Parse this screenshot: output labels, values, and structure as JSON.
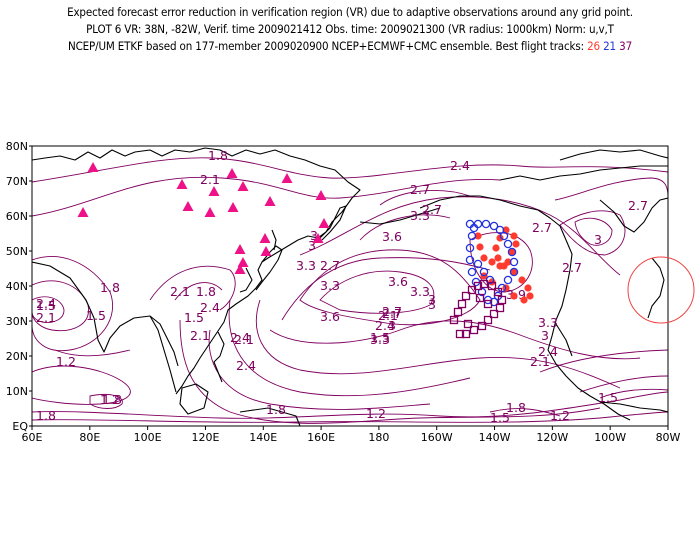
{
  "header": {
    "line1": "Expected forecast error reduction in verification region (VR) due to adaptive observations around any grid point.",
    "line2": "PLOT 6 VR: 38N, -82W, Verif. time 2009021412 Obs. time: 2009021300 (VR radius: 1000km) Norm: u,v,T",
    "line3_prefix": "NCEP/UM ETKF based on 177-member 2009020900 NCEP+ECMWF+CMC ensemble. Best flight tracks:",
    "track_a": "26",
    "track_b": "21",
    "track_c": "37"
  },
  "colors": {
    "contour": "#800060",
    "coast": "#000000",
    "track_a": "#ff3b30",
    "track_b": "#2233dd",
    "track_c": "#800060",
    "triangle": "#ee1188",
    "vr_circle": "#ee4444"
  },
  "axes": {
    "x_ticks": [
      "60E",
      "80E",
      "100E",
      "120E",
      "140E",
      "160E",
      "180",
      "160W",
      "140W",
      "120W",
      "100W",
      "80W"
    ],
    "y_ticks": [
      "EQ",
      "10N",
      "20N",
      "30N",
      "40N",
      "50N",
      "60N",
      "70N",
      "80N"
    ]
  },
  "contour_labels": [
    "1.8",
    "2.1",
    "2.4",
    "2.7",
    "3.3",
    "3.6",
    "3",
    "2.7",
    "3.3",
    "3.6",
    "3.3",
    "3",
    "3.9",
    "2.7",
    "3.3",
    "3",
    "3",
    "2.7",
    "2.4",
    "2.1",
    "2.4",
    "2.1",
    "1.8",
    "1.5",
    "1.5",
    "1.2",
    "1.2",
    "1.5",
    "1.8",
    "1.2",
    "1.5",
    "1.8",
    "2.1",
    "2.4",
    "2.7",
    "3",
    "3.3",
    "2.7",
    "3",
    "2.4",
    "2.1",
    "1.8",
    "1.5",
    "1.8",
    "2.1",
    "2.4",
    "2.1",
    "2.4",
    "2.7",
    "3",
    "3.6",
    "3.3",
    "1.5",
    "2.7",
    "1.8",
    "1.2"
  ]
}
